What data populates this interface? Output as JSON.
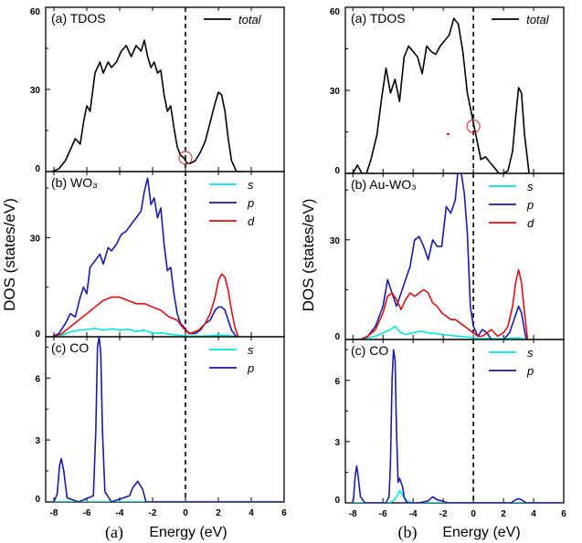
{
  "colors": {
    "total": "#000000",
    "s": "#00e5e5",
    "p": "#1a1aaa",
    "d": "#dd1111",
    "marker": "#dd2222"
  },
  "ylabel": "DOS (states/eV)",
  "xlabel": "Energy (eV)",
  "chart_data": [
    {
      "figure": "(a)",
      "type": "line",
      "xlim": [
        -8.5,
        6
      ],
      "xticks": [
        -8,
        -6,
        -4,
        -2,
        0,
        2,
        4,
        6
      ],
      "xticklabels": [
        "-8",
        "-6",
        "-4",
        "-2",
        "0",
        "2",
        "4",
        "6"
      ],
      "fermi_level": 0,
      "panels": [
        {
          "title": "(a) TDOS",
          "ylim": [
            0,
            60
          ],
          "yticks": [
            0,
            30,
            60
          ],
          "yticklabels": [
            "0",
            "30",
            "60"
          ],
          "series": [
            {
              "name": "total",
              "key": "total",
              "x": [
                -8.1,
                -7.7,
                -7.3,
                -7.0,
                -6.7,
                -6.4,
                -6.2,
                -6.0,
                -5.8,
                -5.5,
                -5.2,
                -5.0,
                -4.7,
                -4.5,
                -4.2,
                -3.9,
                -3.6,
                -3.3,
                -3.0,
                -2.7,
                -2.5,
                -2.3,
                -2.1,
                -1.9,
                -1.7,
                -1.5,
                -1.3,
                -1.1,
                -0.9,
                -0.7,
                -0.5,
                -0.3,
                -0.1,
                0.1,
                0.3,
                0.6,
                0.9,
                1.2,
                1.5,
                1.8,
                2.0,
                2.2,
                2.4,
                2.6,
                2.8,
                3.1,
                3.5
              ],
              "y": [
                0,
                1,
                4,
                8,
                12,
                10,
                18,
                24,
                22,
                36,
                40,
                36,
                40,
                38,
                40,
                44,
                46,
                42,
                46,
                44,
                48,
                42,
                38,
                40,
                36,
                37,
                28,
                22,
                24,
                16,
                9,
                6,
                5,
                3,
                3,
                4,
                7,
                11,
                18,
                25,
                29,
                28,
                22,
                12,
                4,
                0,
                0
              ]
            }
          ],
          "marker": {
            "x": 0,
            "y": 5
          }
        },
        {
          "title": "(b) WO₃",
          "ylim": [
            0,
            50
          ],
          "yticks": [
            0,
            30
          ],
          "yticklabels": [
            "0",
            "30"
          ],
          "series": [
            {
              "name": "s",
              "key": "s",
              "x": [
                -8.0,
                -7.5,
                -7.0,
                -6.5,
                -6.0,
                -5.5,
                -5.0,
                -4.5,
                -4.0,
                -3.5,
                -3.0,
                -2.5,
                -2.0,
                -1.5,
                -1.0,
                -0.5,
                0.0,
                0.5,
                1.0,
                1.5,
                2.0,
                2.5,
                3.0,
                3.5
              ],
              "y": [
                0,
                0.5,
                1.5,
                2,
                2.2,
                2.5,
                2,
                2.4,
                2,
                2.3,
                1.6,
                2,
                1,
                1.2,
                0.8,
                0.5,
                0.2,
                0.2,
                0.2,
                0.3,
                0.5,
                0.4,
                0.1,
                0
              ]
            },
            {
              "name": "p",
              "key": "p",
              "x": [
                -8.1,
                -7.7,
                -7.3,
                -7.0,
                -6.7,
                -6.4,
                -6.2,
                -6.0,
                -5.8,
                -5.5,
                -5.2,
                -5.0,
                -4.7,
                -4.5,
                -4.2,
                -3.9,
                -3.6,
                -3.3,
                -3.0,
                -2.7,
                -2.5,
                -2.3,
                -2.1,
                -1.9,
                -1.7,
                -1.5,
                -1.3,
                -1.1,
                -0.9,
                -0.7,
                -0.5,
                -0.3,
                -0.1,
                0.2,
                0.6,
                0.9,
                1.2,
                1.5,
                1.8,
                2.0,
                2.2,
                2.4,
                2.6,
                2.8,
                3.1
              ],
              "y": [
                0,
                1,
                4,
                7,
                6,
                12,
                15,
                13,
                21,
                23,
                25,
                22,
                27,
                26,
                28,
                31,
                32,
                34,
                36,
                38,
                44,
                48,
                40,
                42,
                36,
                39,
                28,
                20,
                21,
                13,
                7,
                4,
                3,
                1,
                1,
                2,
                4,
                5,
                8,
                9,
                9,
                8,
                5,
                2,
                0
              ]
            },
            {
              "name": "d",
              "key": "d",
              "x": [
                -8.0,
                -7.5,
                -7.0,
                -6.5,
                -6.0,
                -5.5,
                -5.0,
                -4.5,
                -4.0,
                -3.5,
                -3.0,
                -2.5,
                -2.0,
                -1.5,
                -1.0,
                -0.5,
                -0.2,
                0.0,
                0.3,
                0.8,
                1.2,
                1.5,
                1.8,
                2.0,
                2.2,
                2.4,
                2.6,
                2.8,
                3.0,
                3.2
              ],
              "y": [
                0,
                1,
                3,
                5,
                7,
                9,
                11,
                12,
                12,
                11,
                10,
                10,
                9,
                8,
                6,
                5,
                3,
                2,
                1,
                2,
                4,
                7,
                12,
                17,
                19,
                18,
                14,
                8,
                3,
                0
              ]
            }
          ],
          "legend": [
            "s",
            "p",
            "d"
          ]
        },
        {
          "title": "(c) CO",
          "ylim": [
            0,
            8
          ],
          "yticks": [
            0,
            3,
            6
          ],
          "yticklabels": [
            "0",
            "3",
            "6"
          ],
          "series": [
            {
              "name": "s",
              "key": "s",
              "x": [
                -8.0,
                6.0
              ],
              "y": [
                0,
                0
              ]
            },
            {
              "name": "p",
              "key": "p",
              "x": [
                -8.0,
                -7.8,
                -7.65,
                -7.55,
                -7.4,
                -7.2,
                -6.5,
                -5.6,
                -5.45,
                -5.35,
                -5.25,
                -5.15,
                -5.05,
                -4.9,
                -4.5,
                -3.4,
                -3.2,
                -2.9,
                -2.6,
                -2.4,
                6.0
              ],
              "y": [
                0,
                0.4,
                1.8,
                2.1,
                1.5,
                0.2,
                0,
                0.3,
                3.5,
                7.5,
                8.0,
                7.2,
                3.5,
                0.5,
                0,
                0.3,
                0.7,
                1.0,
                0.6,
                0,
                0
              ]
            }
          ],
          "legend": [
            "s",
            "p"
          ]
        }
      ]
    },
    {
      "figure": "(b)",
      "type": "line",
      "xlim": [
        -8.5,
        6
      ],
      "xticks": [
        -8,
        -6,
        -4,
        -2,
        0,
        2,
        4,
        6
      ],
      "xticklabels": [
        "-8",
        "-6",
        "-4",
        "-2",
        "0",
        "2",
        "4",
        "6"
      ],
      "fermi_level": 0,
      "panels": [
        {
          "title": "(a) TDOS",
          "ylim": [
            0,
            60
          ],
          "yticks": [
            0,
            30,
            60
          ],
          "yticklabels": [
            "0",
            "30",
            "60"
          ],
          "series": [
            {
              "name": "total",
              "key": "total",
              "x": [
                -8.3,
                -8.0,
                -7.7,
                -7.4,
                -7.1,
                -6.8,
                -6.4,
                -6.1,
                -5.8,
                -5.5,
                -5.2,
                -4.9,
                -4.6,
                -4.3,
                -4.0,
                -3.7,
                -3.4,
                -3.1,
                -2.8,
                -2.5,
                -2.2,
                -1.9,
                -1.6,
                -1.3,
                -1.0,
                -0.7,
                -0.4,
                -0.1,
                0.2,
                0.5,
                0.8,
                1.1,
                1.4,
                1.7,
                2.0,
                2.3,
                2.6,
                2.8,
                3.0,
                3.2,
                3.4,
                3.7
              ],
              "y": [
                0,
                0,
                3,
                0,
                0,
                5,
                14,
                27,
                38,
                29,
                34,
                26,
                42,
                46,
                44,
                42,
                36,
                46,
                44,
                43,
                46,
                48,
                50,
                56,
                54,
                44,
                29,
                21,
                13,
                5,
                6,
                4,
                2,
                0,
                0,
                1,
                8,
                20,
                31,
                29,
                14,
                0
              ]
            }
          ],
          "marker": {
            "x": 0,
            "y": 17
          }
        },
        {
          "title": "(b) Au-WO₃",
          "ylim": [
            0,
            50
          ],
          "yticks": [
            0,
            30
          ],
          "yticklabels": [
            "0",
            "30"
          ],
          "series": [
            {
              "name": "s",
              "key": "s",
              "x": [
                -8.0,
                -7.5,
                -7.0,
                -6.5,
                -6.0,
                -5.5,
                -5.2,
                -5.0,
                -4.8,
                -4.5,
                -4.0,
                -3.5,
                -3.0,
                -2.5,
                -2.0,
                -1.5,
                -1.0,
                -0.5,
                0.0,
                0.5,
                1.0,
                1.5,
                2.0,
                2.5,
                3.0,
                3.5
              ],
              "y": [
                0,
                0,
                0.5,
                1,
                2,
                3,
                4,
                3,
                2,
                1.5,
                2,
                2.5,
                2,
                1.8,
                1.5,
                1.2,
                1,
                0.8,
                0.5,
                0.3,
                0.3,
                0.2,
                0.3,
                0.4,
                0.5,
                0
              ]
            },
            {
              "name": "p",
              "key": "p",
              "x": [
                -8.0,
                -7.5,
                -7.0,
                -6.5,
                -6.0,
                -5.7,
                -5.4,
                -5.1,
                -4.8,
                -4.5,
                -4.2,
                -3.9,
                -3.6,
                -3.3,
                -3.0,
                -2.7,
                -2.4,
                -2.1,
                -1.8,
                -1.5,
                -1.2,
                -1.0,
                -0.8,
                -0.6,
                -0.4,
                -0.2,
                0.0,
                0.3,
                0.6,
                0.9,
                1.2,
                1.6,
                2.0,
                2.4,
                2.7,
                3.0,
                3.2,
                3.5
              ],
              "y": [
                0,
                0,
                1,
                4,
                10,
                18,
                14,
                10,
                14,
                18,
                22,
                30,
                31,
                28,
                24,
                30,
                28,
                28,
                40,
                38,
                42,
                52,
                50,
                44,
                32,
                10,
                4,
                1,
                3,
                2,
                0,
                0,
                0,
                2,
                6,
                10,
                8,
                0
              ]
            },
            {
              "name": "d",
              "key": "d",
              "x": [
                -8.0,
                -7.5,
                -7.0,
                -6.5,
                -6.0,
                -5.7,
                -5.4,
                -5.1,
                -4.8,
                -4.5,
                -4.2,
                -3.9,
                -3.6,
                -3.3,
                -3.0,
                -2.7,
                -2.4,
                -2.1,
                -1.8,
                -1.5,
                -1.2,
                -0.9,
                -0.6,
                -0.3,
                0.0,
                0.3,
                0.6,
                0.9,
                1.2,
                1.6,
                2.0,
                2.3,
                2.6,
                2.8,
                3.0,
                3.2,
                3.4,
                3.6
              ],
              "y": [
                0,
                0,
                1,
                3,
                8,
                13,
                14,
                12,
                9,
                12,
                14,
                13,
                14,
                15,
                14,
                11,
                10,
                8,
                7,
                6,
                6,
                5,
                4,
                3,
                2,
                1,
                1,
                2,
                3,
                1,
                2,
                4,
                10,
                17,
                21,
                17,
                8,
                0
              ]
            }
          ],
          "legend": [
            "s",
            "p",
            "d"
          ]
        },
        {
          "title": "(c) CO",
          "ylim": [
            0,
            8
          ],
          "yticks": [
            0,
            3,
            6
          ],
          "yticklabels": [
            "0",
            "3",
            "6"
          ],
          "series": [
            {
              "name": "s",
              "key": "s",
              "x": [
                -8.0,
                -5.6,
                -5.3,
                -5.1,
                -4.9,
                -4.7,
                -4.5,
                -4.0,
                6.0
              ],
              "y": [
                0,
                0,
                0.1,
                0.3,
                0.6,
                0.4,
                0.1,
                0,
                0
              ]
            },
            {
              "name": "p",
              "key": "p",
              "x": [
                -8.0,
                -7.95,
                -7.85,
                -7.75,
                -7.65,
                -7.5,
                -7.2,
                -5.8,
                -5.6,
                -5.5,
                -5.4,
                -5.3,
                -5.2,
                -5.1,
                -5.0,
                -4.9,
                -4.7,
                -4.6,
                -4.4,
                -3.6,
                -3.0,
                -2.7,
                -2.4,
                -2.1,
                -1.7,
                -1.0,
                2.5,
                2.8,
                3.0,
                3.2,
                3.5,
                6.0
              ],
              "y": [
                0,
                0.3,
                1.3,
                1.8,
                1.3,
                0.3,
                0,
                0,
                0.3,
                2,
                6,
                7.5,
                7.0,
                3.5,
                1,
                1.2,
                0.8,
                0.3,
                0,
                0,
                0.1,
                0.3,
                0.15,
                0.1,
                0,
                0,
                0,
                0.15,
                0.2,
                0.15,
                0,
                0
              ]
            }
          ],
          "legend": [
            "s",
            "p"
          ]
        }
      ]
    }
  ]
}
